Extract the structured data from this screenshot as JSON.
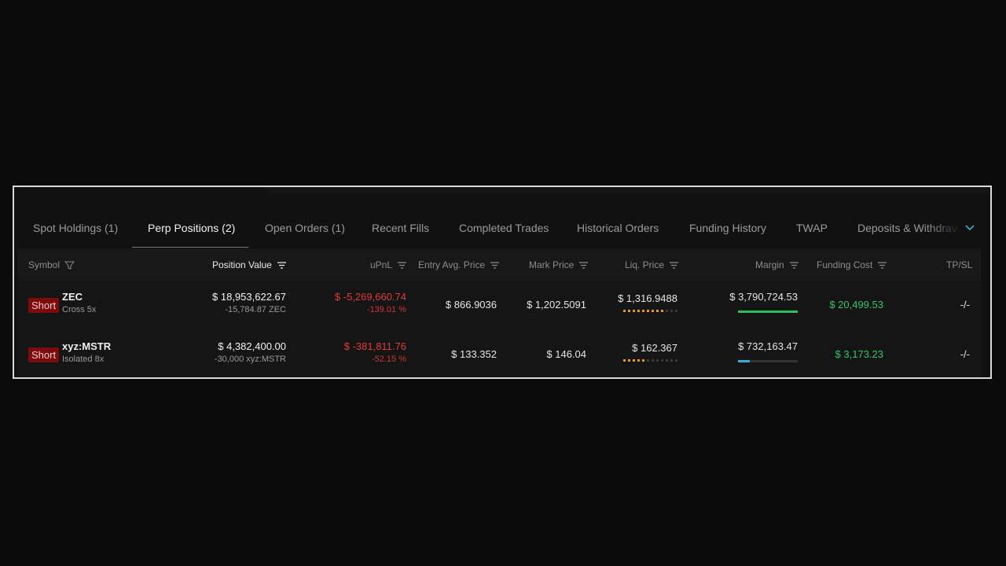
{
  "tabs": [
    {
      "label": "Spot Holdings (1)",
      "active": false
    },
    {
      "label": "Perp Positions (2)",
      "active": true
    },
    {
      "label": "Open Orders (1)",
      "active": false
    },
    {
      "label": "Recent Fills",
      "active": false
    },
    {
      "label": "Completed Trades",
      "active": false
    },
    {
      "label": "Historical Orders",
      "active": false
    },
    {
      "label": "Funding History",
      "active": false
    },
    {
      "label": "TWAP",
      "active": false
    },
    {
      "label": "Deposits & Withdrav",
      "active": false
    }
  ],
  "columns": {
    "symbol": "Symbol",
    "position_value": "Position Value",
    "upnl": "uPnL",
    "entry_avg_price": "Entry Avg. Price",
    "mark_price": "Mark Price",
    "liq_price": "Liq. Price",
    "margin": "Margin",
    "funding_cost": "Funding Cost",
    "tpsl": "TP/SL"
  },
  "positions": [
    {
      "side": "Short",
      "symbol": "ZEC",
      "leverage": "Cross 5x",
      "position_value": "$ 18,953,622.67",
      "size": "-15,784.87 ZEC",
      "upnl": "$ -5,269,660.74",
      "upnl_pct": "-139.01 %",
      "entry_price": "$ 866.9036",
      "mark_price": "$ 1,202.5091",
      "liq_price": "$ 1,316.9488",
      "liq_risk_dots_filled": 9,
      "liq_risk_dots_total": 12,
      "margin": "$ 3,790,724.53",
      "margin_ratio": 1.0,
      "margin_bar_color": "#2bbf5d",
      "funding_cost": "$ 20,499.53",
      "tpsl": "-/-"
    },
    {
      "side": "Short",
      "symbol": "xyz:MSTR",
      "leverage": "Isolated 8x",
      "position_value": "$ 4,382,400.00",
      "size": "-30,000 xyz:MSTR",
      "upnl": "$ -381,811.76",
      "upnl_pct": "-52.15 %",
      "entry_price": "$ 133.352",
      "mark_price": "$ 146.04",
      "liq_price": "$ 162.367",
      "liq_risk_dots_filled": 5,
      "liq_risk_dots_total": 12,
      "margin": "$ 732,163.47",
      "margin_ratio": 0.2,
      "margin_bar_color": "#3fa9d6",
      "funding_cost": "$ 3,173.23",
      "tpsl": "-/-"
    }
  ],
  "colors": {
    "accent": "#3fa9d6",
    "negative": "#e13a3a",
    "positive": "#31c66a",
    "short_badge": "#7c0c0c"
  }
}
